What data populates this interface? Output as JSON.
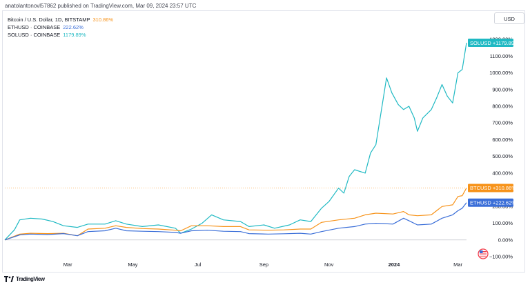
{
  "header": {
    "text": "anatolantonovl57862 published on TradingView.com, Mar 09, 2024 23:57 UTC"
  },
  "legend": [
    {
      "name": "Bitcoin / U.S. Dollar, 1D, BITSTAMP",
      "value": "310.86%",
      "color": "#f7931a"
    },
    {
      "name": "ETHUSD · COINBASE",
      "value": "222.62%",
      "color": "#3a6ed8"
    },
    {
      "name": "SOLUSD · COINBASE",
      "value": "1179.89%",
      "color": "#1fb9c3"
    }
  ],
  "currency": "USD",
  "footer": {
    "brand": "TradingView",
    "logo": "tradingview-logo-icon"
  },
  "badge_icon": "us-flag-icon",
  "chart_data": {
    "type": "line",
    "y_unit": "%",
    "ylim": [
      -100,
      1250
    ],
    "y_ticks": [
      -100,
      0,
      100,
      200,
      300,
      400,
      500,
      600,
      700,
      800,
      900,
      1000,
      1100,
      1200
    ],
    "y_tick_labels": [
      "−100.00%",
      "0.00%",
      "100.00%",
      "200.00%",
      "300.00%",
      "400.00%",
      "500.00%",
      "600.00%",
      "700.00%",
      "800.00%",
      "900.00%",
      "1000.00%",
      "1100.00%",
      "1200.00%"
    ],
    "x_ticks": [
      "Mar",
      "May",
      "Jul",
      "Sep",
      "Nov",
      "2024",
      "Mar"
    ],
    "x_tick_dates": [
      "2023-03-01",
      "2023-05-01",
      "2023-07-01",
      "2023-09-01",
      "2023-11-01",
      "2024-01-01",
      "2024-03-01"
    ],
    "x_start": "2023-01-01",
    "x_end": "2024-03-09",
    "series": [
      {
        "name": "SOLUSD",
        "label": "SOLUSD",
        "last_label": "+1179.89%",
        "color": "#1fb9c3",
        "points": [
          [
            "2023-01-01",
            0
          ],
          [
            "2023-01-10",
            60
          ],
          [
            "2023-01-15",
            120
          ],
          [
            "2023-01-25",
            130
          ],
          [
            "2023-02-05",
            125
          ],
          [
            "2023-02-15",
            110
          ],
          [
            "2023-02-25",
            85
          ],
          [
            "2023-03-10",
            75
          ],
          [
            "2023-03-20",
            95
          ],
          [
            "2023-04-05",
            95
          ],
          [
            "2023-04-15",
            115
          ],
          [
            "2023-04-25",
            95
          ],
          [
            "2023-05-10",
            80
          ],
          [
            "2023-05-25",
            90
          ],
          [
            "2023-06-10",
            70
          ],
          [
            "2023-06-15",
            40
          ],
          [
            "2023-06-25",
            65
          ],
          [
            "2023-07-05",
            100
          ],
          [
            "2023-07-14",
            150
          ],
          [
            "2023-07-25",
            120
          ],
          [
            "2023-08-10",
            110
          ],
          [
            "2023-08-18",
            80
          ],
          [
            "2023-09-01",
            90
          ],
          [
            "2023-09-11",
            70
          ],
          [
            "2023-09-25",
            90
          ],
          [
            "2023-10-05",
            120
          ],
          [
            "2023-10-15",
            110
          ],
          [
            "2023-10-25",
            190
          ],
          [
            "2023-11-01",
            230
          ],
          [
            "2023-11-10",
            310
          ],
          [
            "2023-11-15",
            280
          ],
          [
            "2023-11-20",
            380
          ],
          [
            "2023-11-25",
            420
          ],
          [
            "2023-12-05",
            400
          ],
          [
            "2023-12-10",
            520
          ],
          [
            "2023-12-15",
            570
          ],
          [
            "2023-12-22",
            850
          ],
          [
            "2023-12-25",
            970
          ],
          [
            "2023-12-30",
            880
          ],
          [
            "2024-01-05",
            810
          ],
          [
            "2024-01-10",
            780
          ],
          [
            "2024-01-15",
            800
          ],
          [
            "2024-01-20",
            730
          ],
          [
            "2024-01-23",
            650
          ],
          [
            "2024-01-28",
            730
          ],
          [
            "2024-02-05",
            780
          ],
          [
            "2024-02-10",
            850
          ],
          [
            "2024-02-15",
            930
          ],
          [
            "2024-02-20",
            860
          ],
          [
            "2024-02-25",
            820
          ],
          [
            "2024-03-01",
            1000
          ],
          [
            "2024-03-05",
            1020
          ],
          [
            "2024-03-09",
            1180
          ]
        ]
      },
      {
        "name": "BTCUSD",
        "label": "BTCUSD",
        "last_label": "+310.86%",
        "color": "#f7931a",
        "points": [
          [
            "2023-01-01",
            0
          ],
          [
            "2023-01-15",
            35
          ],
          [
            "2023-01-25",
            40
          ],
          [
            "2023-02-10",
            38
          ],
          [
            "2023-02-25",
            40
          ],
          [
            "2023-03-10",
            25
          ],
          [
            "2023-03-20",
            65
          ],
          [
            "2023-04-05",
            70
          ],
          [
            "2023-04-15",
            85
          ],
          [
            "2023-04-25",
            75
          ],
          [
            "2023-05-10",
            68
          ],
          [
            "2023-05-25",
            65
          ],
          [
            "2023-06-10",
            58
          ],
          [
            "2023-06-15",
            55
          ],
          [
            "2023-06-25",
            85
          ],
          [
            "2023-07-10",
            85
          ],
          [
            "2023-07-25",
            80
          ],
          [
            "2023-08-10",
            80
          ],
          [
            "2023-08-18",
            60
          ],
          [
            "2023-09-05",
            58
          ],
          [
            "2023-09-20",
            60
          ],
          [
            "2023-10-05",
            65
          ],
          [
            "2023-10-15",
            65
          ],
          [
            "2023-10-25",
            105
          ],
          [
            "2023-11-10",
            120
          ],
          [
            "2023-11-25",
            130
          ],
          [
            "2023-12-05",
            150
          ],
          [
            "2023-12-15",
            160
          ],
          [
            "2023-12-31",
            155
          ],
          [
            "2024-01-10",
            170
          ],
          [
            "2024-01-15",
            150
          ],
          [
            "2024-01-23",
            145
          ],
          [
            "2024-02-05",
            150
          ],
          [
            "2024-02-15",
            200
          ],
          [
            "2024-02-25",
            210
          ],
          [
            "2024-03-01",
            260
          ],
          [
            "2024-03-05",
            265
          ],
          [
            "2024-03-09",
            311
          ]
        ]
      },
      {
        "name": "ETHUSD",
        "label": "ETHUSD",
        "last_label": "+222.62%",
        "color": "#3a6ed8",
        "points": [
          [
            "2023-01-01",
            0
          ],
          [
            "2023-01-15",
            30
          ],
          [
            "2023-01-25",
            35
          ],
          [
            "2023-02-10",
            32
          ],
          [
            "2023-02-25",
            38
          ],
          [
            "2023-03-10",
            25
          ],
          [
            "2023-03-20",
            50
          ],
          [
            "2023-04-05",
            55
          ],
          [
            "2023-04-15",
            70
          ],
          [
            "2023-04-25",
            55
          ],
          [
            "2023-05-10",
            52
          ],
          [
            "2023-05-25",
            50
          ],
          [
            "2023-06-10",
            45
          ],
          [
            "2023-06-15",
            40
          ],
          [
            "2023-06-25",
            55
          ],
          [
            "2023-07-10",
            58
          ],
          [
            "2023-07-25",
            52
          ],
          [
            "2023-08-10",
            50
          ],
          [
            "2023-08-18",
            38
          ],
          [
            "2023-09-05",
            35
          ],
          [
            "2023-09-20",
            37
          ],
          [
            "2023-10-05",
            40
          ],
          [
            "2023-10-15",
            35
          ],
          [
            "2023-10-25",
            50
          ],
          [
            "2023-11-10",
            70
          ],
          [
            "2023-11-25",
            80
          ],
          [
            "2023-12-05",
            95
          ],
          [
            "2023-12-15",
            100
          ],
          [
            "2023-12-31",
            95
          ],
          [
            "2024-01-10",
            130
          ],
          [
            "2024-01-15",
            115
          ],
          [
            "2024-01-23",
            90
          ],
          [
            "2024-02-05",
            95
          ],
          [
            "2024-02-15",
            130
          ],
          [
            "2024-02-25",
            150
          ],
          [
            "2024-03-01",
            175
          ],
          [
            "2024-03-05",
            190
          ],
          [
            "2024-03-09",
            223
          ]
        ]
      }
    ]
  }
}
